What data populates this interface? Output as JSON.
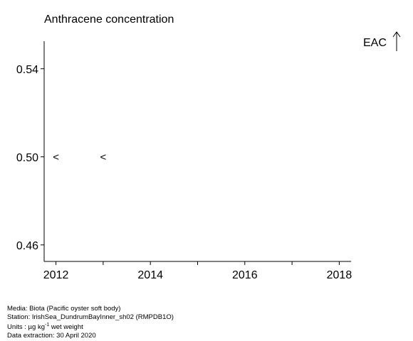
{
  "chart_data": {
    "type": "scatter",
    "title": "Anthracene concentration",
    "xlabel": "",
    "ylabel": "",
    "xlim": [
      2011.75,
      2018.25
    ],
    "ylim": [
      0.4525,
      0.5525
    ],
    "x_ticks": [
      2012,
      2013,
      2014,
      2015,
      2016,
      2017,
      2018
    ],
    "x_tick_labels": [
      "2012",
      "2014",
      "2016",
      "2018"
    ],
    "y_ticks": [
      0.46,
      0.5,
      0.54
    ],
    "y_tick_labels": [
      "0.46",
      "0.50",
      "0.54"
    ],
    "grid": false,
    "series": [
      {
        "marker": "<",
        "points": [
          {
            "x": 2012,
            "y": 0.5,
            "label": "<"
          },
          {
            "x": 2013,
            "y": 0.5,
            "label": "<"
          }
        ]
      }
    ],
    "annotations": [
      {
        "text": "EAC",
        "arrow": "up",
        "position": "top-right"
      }
    ]
  },
  "footer": {
    "media": "Media: Biota (Pacific oyster soft body)",
    "station": "Station: IrishSea_DundrumBayInner_sh02 (RMPDB1O)",
    "units_prefix": "Units : µg kg",
    "units_sup": "-1",
    "units_suffix": " wet weight",
    "extraction": "Data extraction: 30 April 2020"
  }
}
